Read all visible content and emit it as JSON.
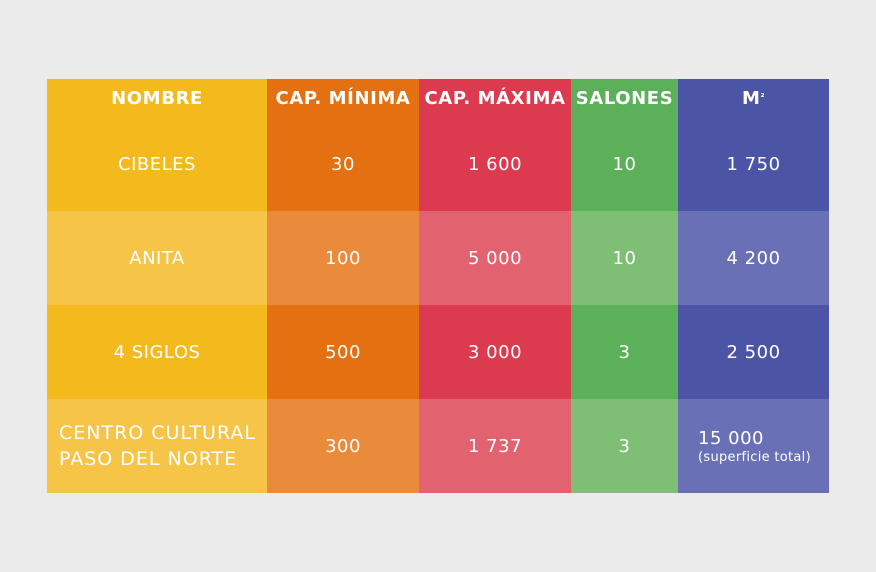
{
  "chart_data": {
    "type": "table",
    "columns": [
      "NOMBRE",
      "CAP. MÍNIMA",
      "CAP. MÁXIMA",
      "SALONES",
      "M",
      "²"
    ],
    "header": {
      "nombre": "NOMBRE",
      "cap_minima": "CAP. MÍNIMA",
      "cap_maxima": "CAP. MÁXIMA",
      "salones": "SALONES",
      "m2_base": "M",
      "m2_sup": "²"
    },
    "rows": [
      {
        "nombre": "CIBELES",
        "cap_minima": "30",
        "cap_maxima": "1 600",
        "salones": "10",
        "m2": "1 750"
      },
      {
        "nombre": "ANITA",
        "cap_minima": "100",
        "cap_maxima": "5 000",
        "salones": "10",
        "m2": "4 200"
      },
      {
        "nombre": "4 SIGLOS",
        "cap_minima": "500",
        "cap_maxima": "3 000",
        "salones": "3",
        "m2": "2 500"
      },
      {
        "nombre_line1": "CENTRO CULTURAL",
        "nombre_line2": "PASO DEL NORTE",
        "cap_minima": "300",
        "cap_maxima": "1 737",
        "salones": "3",
        "m2": "15 000",
        "m2_note": "(superficie total)"
      }
    ]
  },
  "colors": {
    "nombre": "#f4ba1d",
    "cap_minima": "#e5700f",
    "cap_maxima": "#dc3b4f",
    "salones": "#5cb05a",
    "m2": "#4c54a6",
    "background": "#ebebeb"
  }
}
